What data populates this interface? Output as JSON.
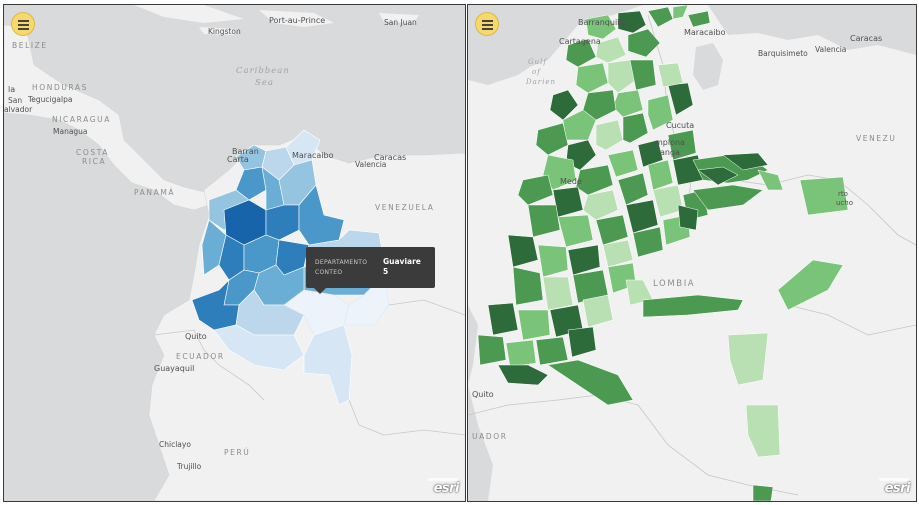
{
  "left_map": {
    "menu_icon": "hamburger-menu-icon",
    "labels": {
      "port_au_prince": "Port-au-Prince",
      "san_juan": "San Juan",
      "kingston": "Kingston",
      "belize": "BELIZE",
      "caribbean_sea_1": "Caribbean",
      "caribbean_sea_2": "Sea",
      "honduras": "HONDURAS",
      "la": "la",
      "tegucigalpa": "Tegucigalpa",
      "san": "San",
      "salvador": "alvador",
      "nicaragua": "NICARAGUA",
      "managua": "Managua",
      "costa": "COSTA",
      "rica": "RICA",
      "panama": "PANAMÁ",
      "barranquilla": "Barran",
      "cartagena": "Carta",
      "maracaibo": "Maracaibo",
      "caracas": "Caracas",
      "valencia": "Valencia",
      "venezuela": "VENEZUELA",
      "quito": "Quito",
      "ecuador": "ECUADOR",
      "guayaquil": "Guayaquil",
      "chiclayo": "Chiclayo",
      "trujillo": "Trujillo",
      "peru": "PERÚ"
    },
    "tooltip": {
      "label_departamento": "DEPARTAMENTO",
      "label_conteo": "CONTEO",
      "value_departamento": "Guaviare",
      "value_conteo": "5"
    },
    "attribution": "esri",
    "colors": {
      "dark": "#1764ab",
      "mid": "#4a98c9",
      "light": "#94c4df",
      "pale": "#d6e6f4"
    }
  },
  "right_map": {
    "menu_icon": "hamburger-menu-icon",
    "labels": {
      "barranquilla": "Barranquilla",
      "cartagena": "Cartagena",
      "maracaibo": "Maracaibo",
      "barquisimeto": "Barquisimeto",
      "valencia": "Valencia",
      "caracas": "Caracas",
      "gulf_1": "Gulf",
      "gulf_2": "of",
      "gulf_3": "Darien",
      "cucuta": "Cucuta",
      "venezuela": "VENEZU",
      "medellin": "Mede",
      "colombia": "LOMBIA",
      "quito": "Quito",
      "ecuador": "UADOR",
      "pamplona": "mplona",
      "bucaramanga": "anga",
      "puerto_1": "rto",
      "puerto_2": "ucho"
    },
    "attribution": "esri",
    "colors": {
      "dark": "#2d6b3a",
      "mid": "#4c9a52",
      "light": "#79c478",
      "pale": "#b8e0b2"
    }
  }
}
